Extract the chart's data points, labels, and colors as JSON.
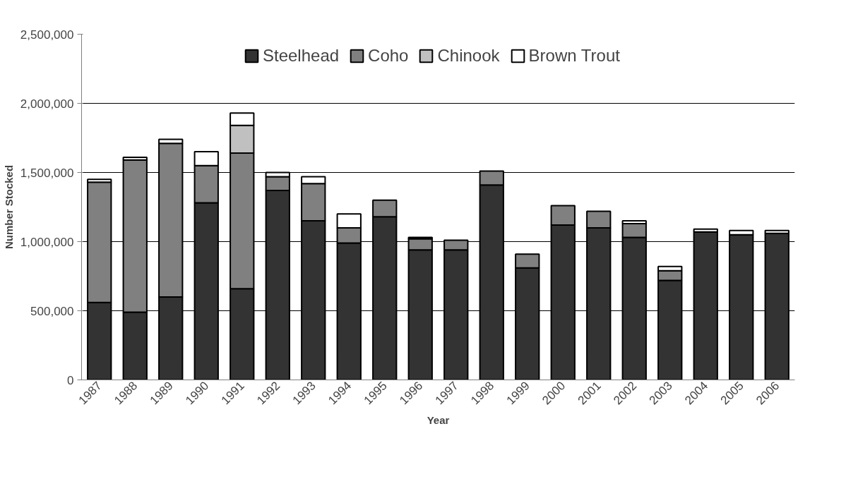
{
  "chart_data": {
    "type": "bar",
    "stacked": true,
    "xlabel": "Year",
    "ylabel": "Number Stocked",
    "categories": [
      "1987",
      "1988",
      "1989",
      "1990",
      "1991",
      "1992",
      "1993",
      "1994",
      "1995",
      "1996",
      "1997",
      "1998",
      "1999",
      "2000",
      "2001",
      "2002",
      "2003",
      "2004",
      "2005",
      "2006"
    ],
    "series": [
      {
        "name": "Steelhead",
        "color": "#333333",
        "values": [
          560000,
          490000,
          600000,
          1280000,
          660000,
          1370000,
          1150000,
          990000,
          1180000,
          940000,
          940000,
          1410000,
          810000,
          1120000,
          1100000,
          1030000,
          720000,
          1070000,
          1050000,
          1060000
        ]
      },
      {
        "name": "Coho",
        "color": "#808080",
        "values": [
          870000,
          1100000,
          1110000,
          270000,
          980000,
          100000,
          270000,
          110000,
          120000,
          80000,
          70000,
          100000,
          100000,
          140000,
          120000,
          100000,
          70000,
          0,
          0,
          0
        ]
      },
      {
        "name": "Chinook",
        "color": "#c0c0c0",
        "values": [
          0,
          0,
          0,
          0,
          200000,
          0,
          0,
          0,
          0,
          0,
          0,
          0,
          0,
          0,
          0,
          0,
          0,
          0,
          0,
          0
        ]
      },
      {
        "name": "Brown Trout",
        "color": "#ffffff",
        "values": [
          20000,
          20000,
          30000,
          100000,
          90000,
          30000,
          50000,
          100000,
          0,
          10000,
          0,
          0,
          0,
          0,
          0,
          20000,
          30000,
          20000,
          30000,
          20000
        ]
      }
    ],
    "ylim": [
      0,
      2500000
    ],
    "yticks": [
      {
        "value": 0,
        "label": "0"
      },
      {
        "value": 500000,
        "label": "500,000"
      },
      {
        "value": 1000000,
        "label": "1,000,000"
      },
      {
        "value": 1500000,
        "label": "1,500,000"
      },
      {
        "value": 2000000,
        "label": "2,000,000"
      },
      {
        "value": 2500000,
        "label": "2,500,000"
      }
    ],
    "grid": "y",
    "legend": "top"
  }
}
